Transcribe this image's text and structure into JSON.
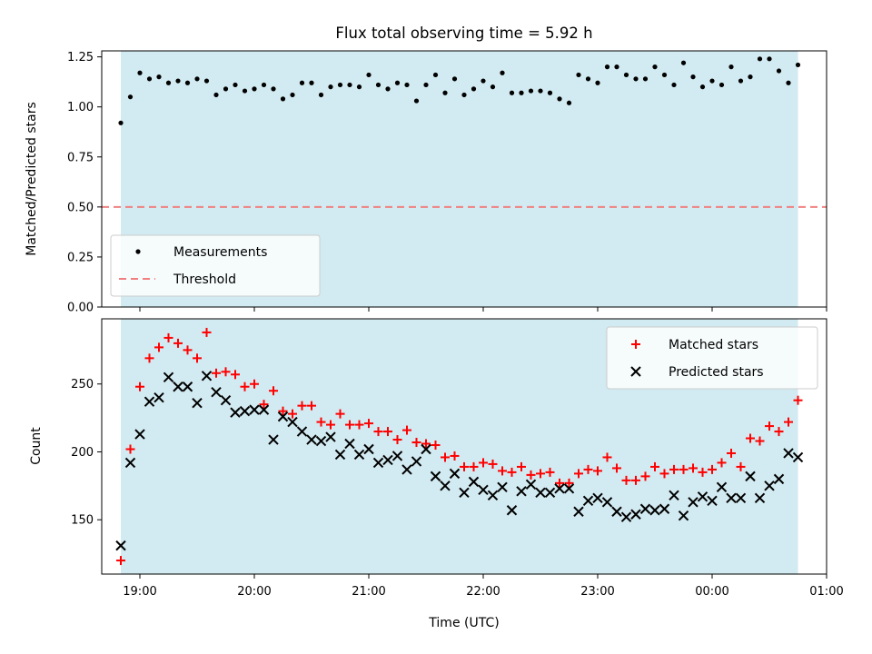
{
  "chart_data": [
    {
      "type": "scatter",
      "title": "Flux total observing time = 5.92 h",
      "xlabel": "",
      "ylabel": "Matched/Predicted stars",
      "xlim": [
        "18:40",
        "01:00"
      ],
      "ylim": [
        0,
        1.28
      ],
      "yticks": [
        "0.00",
        "0.25",
        "0.50",
        "0.75",
        "1.00",
        "1.25"
      ],
      "shaded_span": [
        "18:50",
        "00:45"
      ],
      "shade_color": "#add8e6",
      "legend": "lower-left",
      "threshold": {
        "name": "Threshold",
        "value": 0.5,
        "color": "#f08080",
        "style": "dashed"
      },
      "series": [
        {
          "name": "Measurements",
          "marker": "dot",
          "color": "#000000",
          "x": [
            "18:50",
            "18:55",
            "19:00",
            "19:05",
            "19:10",
            "19:15",
            "19:20",
            "19:25",
            "19:30",
            "19:35",
            "19:40",
            "19:45",
            "19:50",
            "19:55",
            "20:00",
            "20:05",
            "20:10",
            "20:15",
            "20:20",
            "20:25",
            "20:30",
            "20:35",
            "20:40",
            "20:45",
            "20:50",
            "20:55",
            "21:00",
            "21:05",
            "21:10",
            "21:15",
            "21:20",
            "21:25",
            "21:30",
            "21:35",
            "21:40",
            "21:45",
            "21:50",
            "21:55",
            "22:00",
            "22:05",
            "22:10",
            "22:15",
            "22:20",
            "22:25",
            "22:30",
            "22:35",
            "22:40",
            "22:45",
            "22:50",
            "22:55",
            "23:00",
            "23:05",
            "23:10",
            "23:15",
            "23:20",
            "23:25",
            "23:30",
            "23:35",
            "23:40",
            "23:45",
            "23:50",
            "23:55",
            "00:00",
            "00:05",
            "00:10",
            "00:15",
            "00:20",
            "00:25",
            "00:30",
            "00:35",
            "00:40",
            "00:45"
          ],
          "y": [
            0.92,
            1.05,
            1.17,
            1.14,
            1.15,
            1.12,
            1.13,
            1.12,
            1.14,
            1.13,
            1.06,
            1.09,
            1.11,
            1.08,
            1.09,
            1.11,
            1.09,
            1.04,
            1.06,
            1.12,
            1.12,
            1.06,
            1.1,
            1.11,
            1.11,
            1.1,
            1.16,
            1.11,
            1.09,
            1.12,
            1.11,
            1.03,
            1.11,
            1.16,
            1.07,
            1.14,
            1.06,
            1.09,
            1.13,
            1.1,
            1.17,
            1.07,
            1.07,
            1.08,
            1.08,
            1.07,
            1.04,
            1.02,
            1.16,
            1.14,
            1.12,
            1.2,
            1.2,
            1.16,
            1.14,
            1.14,
            1.2,
            1.16,
            1.11,
            1.22,
            1.15,
            1.1,
            1.13,
            1.11,
            1.2,
            1.13,
            1.15,
            1.24,
            1.24,
            1.18,
            1.12,
            1.21
          ]
        }
      ]
    },
    {
      "type": "scatter",
      "title": "",
      "xlabel": "Time (UTC)",
      "ylabel": "Count",
      "xlim": [
        "18:40",
        "01:00"
      ],
      "ylim": [
        110,
        298
      ],
      "yticks": [
        "150",
        "200",
        "250"
      ],
      "xticks": [
        "19:00",
        "20:00",
        "21:00",
        "22:00",
        "23:00",
        "00:00",
        "01:00"
      ],
      "shaded_span": [
        "18:50",
        "00:45"
      ],
      "shade_color": "#add8e6",
      "legend": "top-right",
      "series": [
        {
          "name": "Matched stars",
          "marker": "plus",
          "color": "#ff0000",
          "x": [
            "18:50",
            "18:55",
            "19:00",
            "19:05",
            "19:10",
            "19:15",
            "19:20",
            "19:25",
            "19:30",
            "19:35",
            "19:40",
            "19:45",
            "19:50",
            "19:55",
            "20:00",
            "20:05",
            "20:10",
            "20:15",
            "20:20",
            "20:25",
            "20:30",
            "20:35",
            "20:40",
            "20:45",
            "20:50",
            "20:55",
            "21:00",
            "21:05",
            "21:10",
            "21:15",
            "21:20",
            "21:25",
            "21:30",
            "21:35",
            "21:40",
            "21:45",
            "21:50",
            "21:55",
            "22:00",
            "22:05",
            "22:10",
            "22:15",
            "22:20",
            "22:25",
            "22:30",
            "22:35",
            "22:40",
            "22:45",
            "22:50",
            "22:55",
            "23:00",
            "23:05",
            "23:10",
            "23:15",
            "23:20",
            "23:25",
            "23:30",
            "23:35",
            "23:40",
            "23:45",
            "23:50",
            "23:55",
            "00:00",
            "00:05",
            "00:10",
            "00:15",
            "00:20",
            "00:25",
            "00:30",
            "00:35",
            "00:40",
            "00:45"
          ],
          "y": [
            120,
            202,
            248,
            269,
            277,
            284,
            280,
            275,
            269,
            288,
            258,
            259,
            257,
            248,
            250,
            235,
            245,
            230,
            228,
            234,
            234,
            222,
            220,
            228,
            220,
            220,
            221,
            215,
            215,
            209,
            216,
            207,
            206,
            205,
            196,
            197,
            189,
            189,
            192,
            191,
            186,
            185,
            189,
            183,
            184,
            185,
            177,
            177,
            184,
            187,
            186,
            196,
            188,
            179,
            179,
            182,
            189,
            184,
            187,
            187,
            188,
            185,
            187,
            192,
            199,
            189,
            210,
            208,
            219,
            215,
            222,
            238
          ]
        },
        {
          "name": "Predicted stars",
          "marker": "x",
          "color": "#000000",
          "x": [
            "18:50",
            "18:55",
            "19:00",
            "19:05",
            "19:10",
            "19:15",
            "19:20",
            "19:25",
            "19:30",
            "19:35",
            "19:40",
            "19:45",
            "19:50",
            "19:55",
            "20:00",
            "20:05",
            "20:10",
            "20:15",
            "20:20",
            "20:25",
            "20:30",
            "20:35",
            "20:40",
            "20:45",
            "20:50",
            "20:55",
            "21:00",
            "21:05",
            "21:10",
            "21:15",
            "21:20",
            "21:25",
            "21:30",
            "21:35",
            "21:40",
            "21:45",
            "21:50",
            "21:55",
            "22:00",
            "22:05",
            "22:10",
            "22:15",
            "22:20",
            "22:25",
            "22:30",
            "22:35",
            "22:40",
            "22:45",
            "22:50",
            "22:55",
            "23:00",
            "23:05",
            "23:10",
            "23:15",
            "23:20",
            "23:25",
            "23:30",
            "23:35",
            "23:40",
            "23:45",
            "23:50",
            "23:55",
            "00:00",
            "00:05",
            "00:10",
            "00:15",
            "00:20",
            "00:25",
            "00:30",
            "00:35",
            "00:40",
            "00:45"
          ],
          "y": [
            131,
            192,
            213,
            237,
            240,
            255,
            248,
            248,
            236,
            256,
            244,
            238,
            229,
            230,
            231,
            231,
            209,
            226,
            222,
            215,
            209,
            208,
            211,
            198,
            206,
            198,
            202,
            192,
            194,
            197,
            187,
            193,
            202,
            182,
            175,
            184,
            170,
            178,
            172,
            168,
            174,
            157,
            171,
            176,
            170,
            170,
            173,
            173,
            156,
            164,
            166,
            163,
            156,
            152,
            154,
            158,
            157,
            158,
            168,
            153,
            163,
            167,
            164,
            174,
            166,
            166,
            182,
            166,
            175,
            180,
            199,
            196
          ]
        }
      ]
    }
  ]
}
